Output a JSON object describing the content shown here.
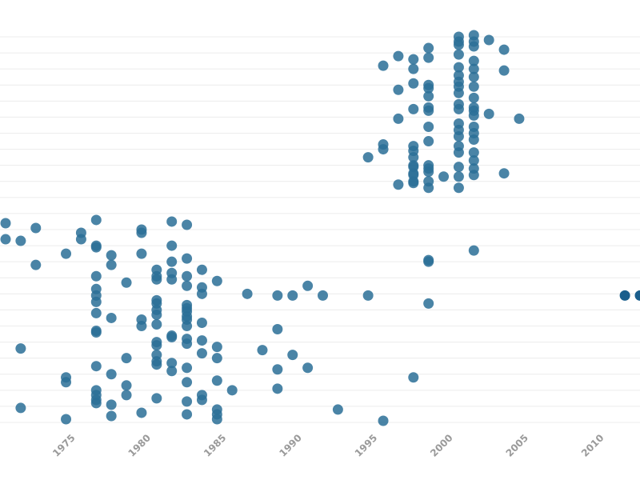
{
  "chart_data": {
    "type": "scatter",
    "title": "",
    "xlabel": "",
    "ylabel": "",
    "grid": true,
    "xlim": [
      1971,
      2013
    ],
    "ylim": [
      0,
      24
    ],
    "x_ticks": [
      "1975",
      "1980",
      "1985",
      "1990",
      "1995",
      "2000",
      "2005",
      "2010"
    ],
    "point_color": "#2a6f97",
    "highlight_color": "#1a5e8c",
    "series": [
      {
        "name": "",
        "points": [
          [
            1971,
            12.4
          ],
          [
            1971,
            11.4
          ],
          [
            1972,
            11.3
          ],
          [
            1973,
            12.1
          ],
          [
            1973,
            9.8
          ],
          [
            1972,
            4.6
          ],
          [
            1972,
            0.9
          ],
          [
            1975,
            10.5
          ],
          [
            1975,
            2.8
          ],
          [
            1975,
            2.5
          ],
          [
            1975,
            0.2
          ],
          [
            1976,
            11.8
          ],
          [
            1976,
            11.4
          ],
          [
            1977,
            12.6
          ],
          [
            1977,
            11.0
          ],
          [
            1977,
            10.9
          ],
          [
            1977,
            9.1
          ],
          [
            1977,
            8.3
          ],
          [
            1977,
            7.9
          ],
          [
            1977,
            7.5
          ],
          [
            1977,
            6.8
          ],
          [
            1977,
            5.7
          ],
          [
            1977,
            5.6
          ],
          [
            1977,
            3.5
          ],
          [
            1977,
            2.0
          ],
          [
            1977,
            1.7
          ],
          [
            1977,
            1.4
          ],
          [
            1977,
            1.2
          ],
          [
            1978,
            10.4
          ],
          [
            1978,
            9.8
          ],
          [
            1978,
            6.5
          ],
          [
            1978,
            3.0
          ],
          [
            1978,
            1.1
          ],
          [
            1978,
            0.4
          ],
          [
            1979,
            8.7
          ],
          [
            1979,
            4.0
          ],
          [
            1979,
            2.3
          ],
          [
            1979,
            1.7
          ],
          [
            1980,
            12.0
          ],
          [
            1980,
            11.8
          ],
          [
            1980,
            10.5
          ],
          [
            1980,
            6.4
          ],
          [
            1980,
            6.0
          ],
          [
            1980,
            0.6
          ],
          [
            1981,
            9.5
          ],
          [
            1981,
            9.1
          ],
          [
            1981,
            8.9
          ],
          [
            1981,
            7.6
          ],
          [
            1981,
            7.4
          ],
          [
            1981,
            7.0
          ],
          [
            1981,
            6.7
          ],
          [
            1981,
            6.1
          ],
          [
            1981,
            5.0
          ],
          [
            1981,
            4.8
          ],
          [
            1981,
            4.2
          ],
          [
            1981,
            3.8
          ],
          [
            1981,
            3.6
          ],
          [
            1981,
            1.5
          ],
          [
            1982,
            12.5
          ],
          [
            1982,
            11.0
          ],
          [
            1982,
            10.0
          ],
          [
            1982,
            9.3
          ],
          [
            1982,
            8.9
          ],
          [
            1982,
            5.4
          ],
          [
            1982,
            5.3
          ],
          [
            1982,
            3.7
          ],
          [
            1982,
            3.2
          ],
          [
            1983,
            12.3
          ],
          [
            1983,
            10.2
          ],
          [
            1983,
            9.1
          ],
          [
            1983,
            8.5
          ],
          [
            1983,
            7.3
          ],
          [
            1983,
            7.1
          ],
          [
            1983,
            6.9
          ],
          [
            1983,
            6.6
          ],
          [
            1983,
            6.4
          ],
          [
            1983,
            6.0
          ],
          [
            1983,
            5.2
          ],
          [
            1983,
            4.9
          ],
          [
            1983,
            3.4
          ],
          [
            1983,
            2.5
          ],
          [
            1983,
            1.3
          ],
          [
            1983,
            0.5
          ],
          [
            1984,
            9.5
          ],
          [
            1984,
            8.4
          ],
          [
            1984,
            8.0
          ],
          [
            1984,
            6.2
          ],
          [
            1984,
            5.1
          ],
          [
            1984,
            4.3
          ],
          [
            1984,
            1.7
          ],
          [
            1984,
            1.4
          ],
          [
            1985,
            8.8
          ],
          [
            1985,
            4.7
          ],
          [
            1985,
            4.0
          ],
          [
            1985,
            2.6
          ],
          [
            1985,
            0.8
          ],
          [
            1985,
            0.5
          ],
          [
            1985,
            0.2
          ],
          [
            1986,
            2.0
          ],
          [
            1987,
            8.0
          ],
          [
            1988,
            4.5
          ],
          [
            1989,
            7.9
          ],
          [
            1989,
            5.8
          ],
          [
            1989,
            3.3
          ],
          [
            1989,
            2.1
          ],
          [
            1990,
            7.9
          ],
          [
            1990,
            4.2
          ],
          [
            1991,
            8.5
          ],
          [
            1991,
            3.4
          ],
          [
            1992,
            7.9
          ],
          [
            1993,
            0.8
          ],
          [
            1995,
            7.9
          ],
          [
            1995,
            16.5
          ],
          [
            1996,
            22.2
          ],
          [
            1996,
            17.3
          ],
          [
            1996,
            17.0
          ],
          [
            1996,
            0.1
          ],
          [
            1997,
            22.8
          ],
          [
            1997,
            20.7
          ],
          [
            1997,
            18.9
          ],
          [
            1997,
            14.8
          ],
          [
            1998,
            22.6
          ],
          [
            1998,
            22.0
          ],
          [
            1998,
            21.1
          ],
          [
            1998,
            19.5
          ],
          [
            1998,
            17.2
          ],
          [
            1998,
            16.9
          ],
          [
            1998,
            16.5
          ],
          [
            1998,
            16.0
          ],
          [
            1998,
            15.9
          ],
          [
            1998,
            15.5
          ],
          [
            1998,
            15.4
          ],
          [
            1998,
            15.0
          ],
          [
            1998,
            14.9
          ],
          [
            1998,
            2.8
          ],
          [
            1999,
            23.3
          ],
          [
            1999,
            22.7
          ],
          [
            1999,
            21.0
          ],
          [
            1999,
            20.8
          ],
          [
            1999,
            20.3
          ],
          [
            1999,
            19.6
          ],
          [
            1999,
            19.4
          ],
          [
            1999,
            18.4
          ],
          [
            1999,
            17.5
          ],
          [
            1999,
            16.0
          ],
          [
            1999,
            15.8
          ],
          [
            1999,
            15.6
          ],
          [
            1999,
            15.0
          ],
          [
            1999,
            14.6
          ],
          [
            1999,
            10.1
          ],
          [
            1999,
            10.0
          ],
          [
            1999,
            7.4
          ],
          [
            2000,
            15.3
          ],
          [
            2001,
            24.0
          ],
          [
            2001,
            23.7
          ],
          [
            2001,
            23.5
          ],
          [
            2001,
            22.9
          ],
          [
            2001,
            22.1
          ],
          [
            2001,
            21.6
          ],
          [
            2001,
            21.2
          ],
          [
            2001,
            20.9
          ],
          [
            2001,
            20.5
          ],
          [
            2001,
            19.8
          ],
          [
            2001,
            19.5
          ],
          [
            2001,
            18.6
          ],
          [
            2001,
            18.2
          ],
          [
            2001,
            17.8
          ],
          [
            2001,
            17.2
          ],
          [
            2001,
            16.8
          ],
          [
            2001,
            15.9
          ],
          [
            2001,
            15.3
          ],
          [
            2001,
            14.6
          ],
          [
            2002,
            24.1
          ],
          [
            2002,
            23.7
          ],
          [
            2002,
            23.4
          ],
          [
            2002,
            22.5
          ],
          [
            2002,
            22.0
          ],
          [
            2002,
            21.5
          ],
          [
            2002,
            20.9
          ],
          [
            2002,
            20.2
          ],
          [
            2002,
            19.6
          ],
          [
            2002,
            19.4
          ],
          [
            2002,
            19.1
          ],
          [
            2002,
            18.4
          ],
          [
            2002,
            18.0
          ],
          [
            2002,
            17.6
          ],
          [
            2002,
            16.8
          ],
          [
            2002,
            16.3
          ],
          [
            2002,
            15.8
          ],
          [
            2002,
            15.4
          ],
          [
            2002,
            10.7
          ],
          [
            2003,
            23.8
          ],
          [
            2003,
            19.2
          ],
          [
            2004,
            23.2
          ],
          [
            2004,
            21.9
          ],
          [
            2004,
            15.5
          ],
          [
            2005,
            18.9
          ]
        ]
      },
      {
        "name": "",
        "highlight": true,
        "points": [
          [
            2012,
            7.9
          ],
          [
            2013,
            7.9
          ]
        ]
      }
    ]
  }
}
